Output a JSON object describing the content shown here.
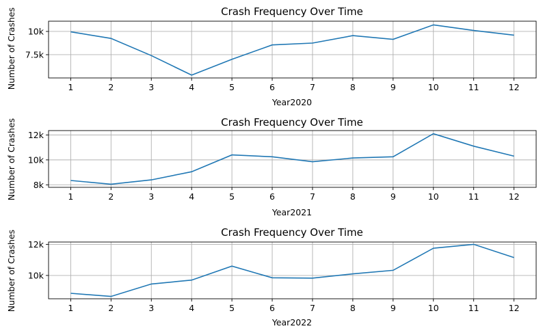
{
  "chart_data": [
    {
      "type": "line",
      "title": "Crash Frequency Over Time",
      "xlabel": "Year2020",
      "ylabel": "Number of Crashes",
      "x": [
        1,
        2,
        3,
        4,
        5,
        6,
        7,
        8,
        9,
        10,
        11,
        12
      ],
      "series": [
        {
          "values": [
            9950,
            9250,
            7400,
            5300,
            7000,
            8550,
            8750,
            9550,
            9150,
            10700,
            10100,
            9600
          ]
        }
      ],
      "ylim": [
        5000,
        11100
      ],
      "yticks": [
        7500,
        10000
      ],
      "ytick_labels": [
        "7.5k",
        "10k"
      ],
      "grid": true,
      "color": "#1f77b4"
    },
    {
      "type": "line",
      "title": "Crash Frequency Over Time",
      "xlabel": "Year2021",
      "ylabel": "Number of Crashes",
      "x": [
        1,
        2,
        3,
        4,
        5,
        6,
        7,
        8,
        9,
        10,
        11,
        12
      ],
      "series": [
        {
          "values": [
            8350,
            8050,
            8400,
            9050,
            10400,
            10250,
            9850,
            10150,
            10250,
            12100,
            11100,
            10300
          ]
        }
      ],
      "ylim": [
        7800,
        12350
      ],
      "yticks": [
        8000,
        10000,
        12000
      ],
      "ytick_labels": [
        "8k",
        "10k",
        "12k"
      ],
      "grid": true,
      "color": "#1f77b4"
    },
    {
      "type": "line",
      "title": "Crash Frequency Over Time",
      "xlabel": "Year2022",
      "ylabel": "Number of Crashes",
      "x": [
        1,
        2,
        3,
        4,
        5,
        6,
        7,
        8,
        9,
        10,
        11,
        12
      ],
      "series": [
        {
          "values": [
            8850,
            8650,
            9450,
            9700,
            10600,
            9850,
            9830,
            10100,
            10330,
            11750,
            12000,
            11150
          ]
        }
      ],
      "ylim": [
        8500,
        12150
      ],
      "yticks": [
        10000,
        12000
      ],
      "ytick_labels": [
        "10k",
        "12k"
      ],
      "grid": true,
      "color": "#1f77b4"
    }
  ]
}
